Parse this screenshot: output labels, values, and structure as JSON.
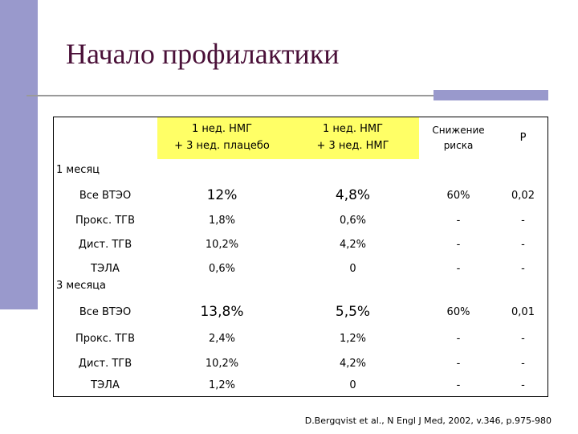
{
  "header": {
    "title": "Начало профилактики"
  },
  "table": {
    "columns": [
      "1 нед. НМГ\n+ 3 нед. плацебо",
      "1 нед. НМГ\n+ 3 нед. НМГ",
      "Снижение\nриска",
      "P"
    ],
    "sections": [
      {
        "label": "1 месяц",
        "rows": [
          [
            "Все ВТЭО",
            "12%",
            "4,8%",
            "60%",
            "0,02"
          ],
          [
            "Прокс. ТГВ",
            "1,8%",
            "0,6%",
            "-",
            "-"
          ],
          [
            "Дист. ТГВ",
            "10,2%",
            "4,2%",
            "-",
            "-"
          ],
          [
            "ТЭЛА",
            "0,6%",
            "0",
            "-",
            "-"
          ]
        ]
      },
      {
        "label": "3 месяца",
        "rows": [
          [
            "Все ВТЭО",
            "13,8%",
            "5,5%",
            "60%",
            "0,01"
          ],
          [
            "Прокс. ТГВ",
            "2,4%",
            "1,2%",
            "-",
            "-"
          ],
          [
            "Дист. ТГВ",
            "10,2%",
            "4,2%",
            "-",
            "-"
          ],
          [
            "ТЭЛА",
            "1,2%",
            "0",
            "-",
            "-"
          ]
        ]
      }
    ]
  },
  "footer": {
    "citation": "D.Bergqvist et al., N Engl J Med, 2002, v.346, p.975-980"
  }
}
